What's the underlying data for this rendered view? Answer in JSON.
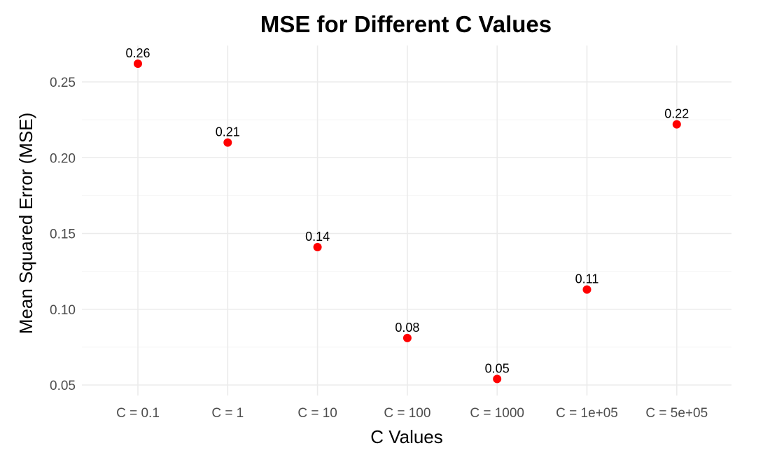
{
  "chart_data": {
    "type": "scatter",
    "title": "MSE for Different C Values",
    "xlabel": "C Values",
    "ylabel": "Mean Squared Error (MSE)",
    "categories": [
      "C = 0.1",
      "C = 1",
      "C = 10",
      "C = 100",
      "C = 1000",
      "C = 1e+05",
      "C = 5e+05"
    ],
    "values": [
      0.262,
      0.21,
      0.141,
      0.081,
      0.054,
      0.113,
      0.222
    ],
    "labels": [
      "0.26",
      "0.21",
      "0.14",
      "0.08",
      "0.05",
      "0.11",
      "0.22"
    ],
    "ylim": [
      0.045,
      0.272
    ],
    "yticks": [
      0.05,
      0.1,
      0.15,
      0.2,
      0.25
    ],
    "ytick_labels": [
      "0.05",
      "0.10",
      "0.15",
      "0.20",
      "0.25"
    ],
    "grid": true,
    "legend": "none",
    "point_color": "#ff0000"
  }
}
